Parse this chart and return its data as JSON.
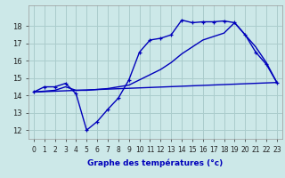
{
  "xlabel": "Graphe des températures (°c)",
  "bg_color": "#cce8e8",
  "grid_color": "#aacccc",
  "line_color": "#0000bb",
  "line1_x": [
    0,
    1,
    2,
    3,
    4,
    5,
    6,
    7,
    8,
    9,
    10,
    11,
    12,
    13,
    14,
    15,
    16,
    17,
    18,
    19,
    20,
    21,
    22,
    23
  ],
  "line1_y": [
    14.2,
    14.5,
    14.5,
    14.7,
    14.1,
    12.0,
    12.5,
    13.2,
    13.85,
    14.9,
    16.5,
    17.2,
    17.3,
    17.5,
    18.35,
    18.2,
    18.25,
    18.25,
    18.3,
    18.2,
    17.5,
    16.5,
    15.8,
    14.75
  ],
  "line2_x": [
    0,
    23
  ],
  "line2_y": [
    14.2,
    14.75
  ],
  "line3_x": [
    0,
    1,
    2,
    3,
    4,
    5,
    6,
    7,
    8,
    9,
    10,
    11,
    12,
    13,
    14,
    15,
    16,
    17,
    18,
    19,
    20,
    21,
    22,
    23
  ],
  "line3_y": [
    14.2,
    14.25,
    14.3,
    14.5,
    14.3,
    14.3,
    14.35,
    14.4,
    14.5,
    14.6,
    14.9,
    15.2,
    15.5,
    15.9,
    16.4,
    16.8,
    17.2,
    17.4,
    17.6,
    18.2,
    17.5,
    16.8,
    15.9,
    14.75
  ],
  "ylim": [
    11.5,
    19.2
  ],
  "xlim": [
    -0.5,
    23.5
  ],
  "yticks": [
    12,
    13,
    14,
    15,
    16,
    17,
    18
  ],
  "xticks": [
    0,
    1,
    2,
    3,
    4,
    5,
    6,
    7,
    8,
    9,
    10,
    11,
    12,
    13,
    14,
    15,
    16,
    17,
    18,
    19,
    20,
    21,
    22,
    23
  ],
  "xtick_labels": [
    "0",
    "1",
    "2",
    "3",
    "4",
    "5",
    "6",
    "7",
    "8",
    "9",
    "10",
    "11",
    "12",
    "13",
    "14",
    "15",
    "16",
    "17",
    "18",
    "19",
    "20",
    "21",
    "22",
    "23"
  ],
  "xlabel_fontsize": 6.5,
  "tick_fontsize": 5.5,
  "ytick_fontsize": 6.0
}
